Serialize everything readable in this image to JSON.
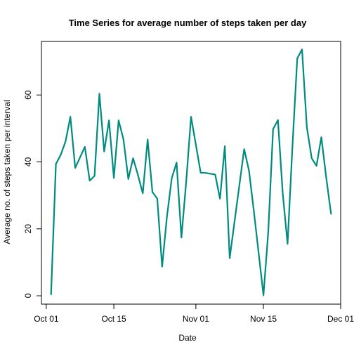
{
  "chart_data": {
    "type": "line",
    "title": "Time Series for average number of steps taken per day",
    "xlabel": "Date",
    "ylabel": "Average no. of steps taken per interval",
    "xlim": [
      "2012-09-30",
      "2012-12-01"
    ],
    "ylim": [
      -2.5,
      76
    ],
    "x_ticks": [
      {
        "date": "2012-10-01",
        "label": "Oct 01"
      },
      {
        "date": "2012-10-15",
        "label": "Oct 15"
      },
      {
        "date": "2012-11-01",
        "label": "Nov 01"
      },
      {
        "date": "2012-11-15",
        "label": "Nov 15"
      },
      {
        "date": "2012-12-01",
        "label": "Dec 01"
      }
    ],
    "y_ticks": [
      0,
      20,
      40,
      60
    ],
    "grid": false,
    "series": [
      {
        "color": "#008B80",
        "x": [
          "2012-10-02",
          "2012-10-03",
          "2012-10-04",
          "2012-10-05",
          "2012-10-06",
          "2012-10-07",
          "2012-10-09",
          "2012-10-10",
          "2012-10-11",
          "2012-10-12",
          "2012-10-13",
          "2012-10-14",
          "2012-10-15",
          "2012-10-16",
          "2012-10-17",
          "2012-10-18",
          "2012-10-19",
          "2012-10-20",
          "2012-10-21",
          "2012-10-22",
          "2012-10-23",
          "2012-10-24",
          "2012-10-25",
          "2012-10-26",
          "2012-10-27",
          "2012-10-28",
          "2012-10-29",
          "2012-10-30",
          "2012-10-31",
          "2012-11-02",
          "2012-11-03",
          "2012-11-05",
          "2012-11-06",
          "2012-11-07",
          "2012-11-08",
          "2012-11-11",
          "2012-11-12",
          "2012-11-13",
          "2012-11-15",
          "2012-11-16",
          "2012-11-17",
          "2012-11-18",
          "2012-11-19",
          "2012-11-20",
          "2012-11-21",
          "2012-11-22",
          "2012-11-23",
          "2012-11-24",
          "2012-11-25",
          "2012-11-26",
          "2012-11-27",
          "2012-11-28",
          "2012-11-29"
        ],
        "values": [
          0.44,
          39.4,
          42.1,
          46.2,
          53.5,
          38.2,
          44.5,
          34.4,
          35.8,
          60.4,
          43.1,
          52.4,
          35.2,
          52.4,
          46.7,
          34.9,
          41.1,
          36.1,
          30.6,
          46.7,
          31.0,
          29.0,
          8.7,
          23.5,
          35.1,
          39.8,
          17.4,
          34.1,
          53.5,
          36.8,
          36.7,
          36.2,
          29.0,
          44.7,
          11.2,
          43.8,
          37.4,
          25.5,
          0.14,
          19.0,
          49.8,
          52.5,
          30.7,
          15.5,
          44.4,
          70.9,
          73.6,
          50.3,
          41.1,
          38.8,
          47.4,
          35.4,
          24.5
        ]
      }
    ]
  }
}
